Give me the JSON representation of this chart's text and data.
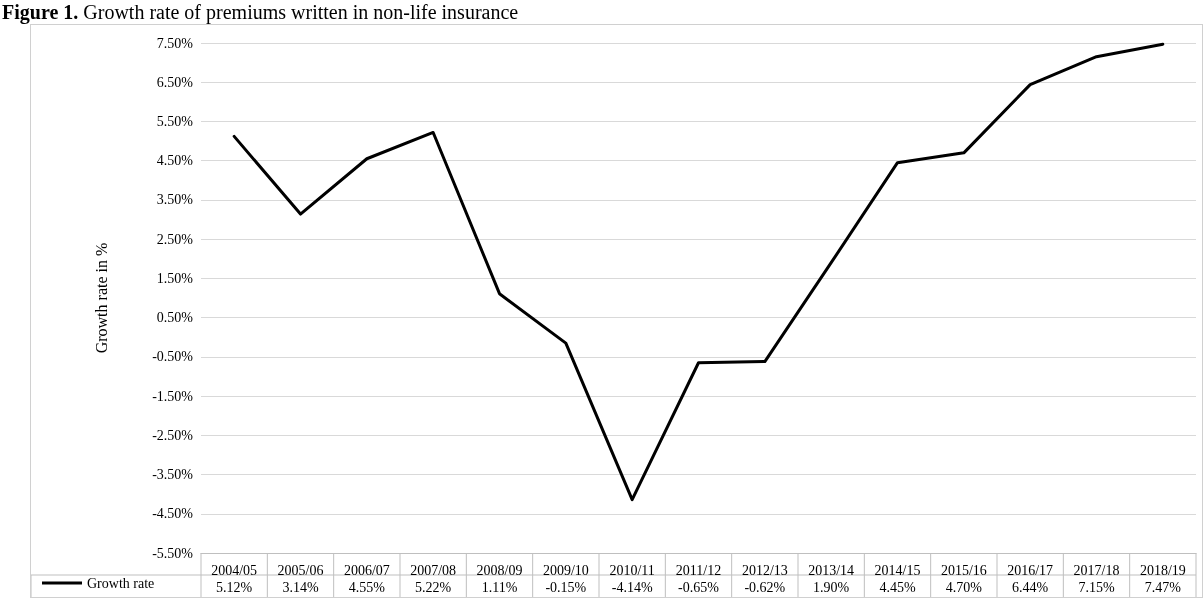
{
  "chart_data": {
    "type": "line",
    "title": "Figure 1. Growth rate of premiums written in non-life insurance",
    "ylabel": "Growth rate in %",
    "categories": [
      "2004/05",
      "2005/06",
      "2006/07",
      "2007/08",
      "2008/09",
      "2009/10",
      "2010/11",
      "2011/12",
      "2012/13",
      "2013/14",
      "2014/15",
      "2015/16",
      "2016/17",
      "2017/18",
      "2018/19"
    ],
    "series": [
      {
        "name": "Growth rate",
        "color": "#000000",
        "values": [
          5.12,
          3.14,
          4.55,
          5.22,
          1.11,
          -0.15,
          -4.14,
          -0.65,
          -0.62,
          1.9,
          4.45,
          4.7,
          6.44,
          7.15,
          7.47
        ],
        "value_labels": [
          "5.12%",
          "3.14%",
          "4.55%",
          "5.22%",
          "1.11%",
          "-0.15%",
          "-4.14%",
          "-0.65%",
          "-0.62%",
          "1.90%",
          "4.45%",
          "4.70%",
          "6.44%",
          "7.15%",
          "7.47%"
        ]
      }
    ],
    "ylim": [
      -5.5,
      7.5
    ],
    "yticks": [
      {
        "value": -5.5,
        "label": "-5.50%"
      },
      {
        "value": -4.5,
        "label": "-4.50%"
      },
      {
        "value": -3.5,
        "label": "-3.50%"
      },
      {
        "value": -2.5,
        "label": "-2.50%"
      },
      {
        "value": -1.5,
        "label": "-1.50%"
      },
      {
        "value": -0.5,
        "label": "-0.50%"
      },
      {
        "value": 0.5,
        "label": "0.50%"
      },
      {
        "value": 1.5,
        "label": "1.50%"
      },
      {
        "value": 2.5,
        "label": "2.50%"
      },
      {
        "value": 3.5,
        "label": "3.50%"
      },
      {
        "value": 4.5,
        "label": "4.50%"
      },
      {
        "value": 5.5,
        "label": "5.50%"
      },
      {
        "value": 6.5,
        "label": "6.50%"
      },
      {
        "value": 7.5,
        "label": "7.50%"
      }
    ],
    "grid": "y",
    "legend": "bottom left",
    "marker": "none",
    "line_style": "solid"
  }
}
